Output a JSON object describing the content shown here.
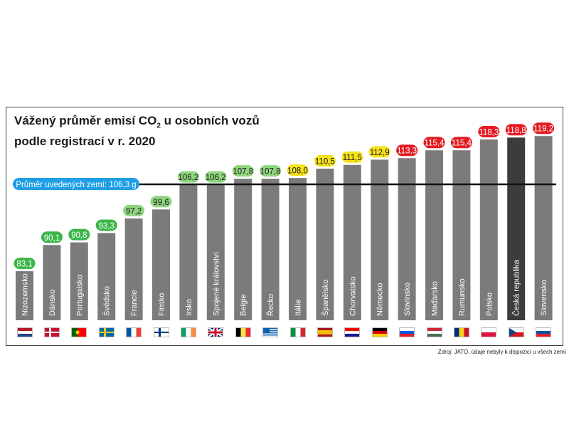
{
  "chart_data": {
    "type": "bar",
    "title_main": "Vážený průměr emisí CO",
    "title_sub": "2",
    "title_rest": " u osobních vozů",
    "title_line2": "podle registrací v r. 2020",
    "categories": [
      "Nizozemsko",
      "Dánsko",
      "Portugalsko",
      "Švédsko",
      "Francie",
      "Finsko",
      "Irsko",
      "Spojené království",
      "Belgie",
      "Řecko",
      "Itálie",
      "Španělsko",
      "Chorvatsko",
      "Německo",
      "Slovinsko",
      "Maďarsko",
      "Rumunsko",
      "Polsko",
      "Česká republika",
      "Slovensko"
    ],
    "values": [
      83.1,
      90.1,
      90.8,
      93.3,
      97.2,
      99.6,
      106.2,
      106.2,
      107.8,
      107.8,
      108.0,
      110.5,
      111.5,
      112.9,
      113.3,
      115.4,
      115.4,
      118.3,
      118.8,
      119.2
    ],
    "value_labels": [
      "83,1",
      "90,1",
      "90,8",
      "93,3",
      "97,2",
      "99,6",
      "106,2",
      "106,2",
      "107,8",
      "107,8",
      "108,0",
      "110,5",
      "111,5",
      "112,9",
      "113,3",
      "115,4",
      "115,4",
      "118,3",
      "118,8",
      "119,2"
    ],
    "label_colors": [
      "green",
      "green",
      "green",
      "green",
      "lightgreen",
      "lightgreen",
      "lightgreen",
      "lightgreen",
      "lightgreen",
      "lightgreen",
      "yellow",
      "yellow",
      "yellow",
      "yellow",
      "red",
      "red",
      "red",
      "red",
      "red",
      "red"
    ],
    "highlight": "Česká republika",
    "average_value": 106.3,
    "average_label": "Průměr uvedených zemí: 106,3 g",
    "colors": {
      "bar": "#7b7b7b",
      "bar_highlight": "#3c3c3c",
      "green": "#3cb648",
      "lightgreen": "#8fd57e",
      "yellow": "#f6e21c",
      "red": "#e31b23",
      "average_pill": "#1e9fe6"
    }
  },
  "flags": [
    {
      "icon": "netherlands-flag-icon",
      "type": "h",
      "colors": [
        "#ae1c28",
        "#ffffff",
        "#21468b"
      ]
    },
    {
      "icon": "denmark-flag-icon",
      "type": "nordic",
      "colors": [
        "#c8102e",
        "#ffffff"
      ]
    },
    {
      "icon": "portugal-flag-icon",
      "type": "pt",
      "colors": [
        "#006600",
        "#ff0000",
        "#ffcc00"
      ]
    },
    {
      "icon": "sweden-flag-icon",
      "type": "nordic",
      "colors": [
        "#006aa7",
        "#fecc00"
      ]
    },
    {
      "icon": "france-flag-icon",
      "type": "v",
      "colors": [
        "#0055a4",
        "#ffffff",
        "#ef4135"
      ]
    },
    {
      "icon": "finland-flag-icon",
      "type": "nordic",
      "colors": [
        "#ffffff",
        "#003580"
      ]
    },
    {
      "icon": "ireland-flag-icon",
      "type": "v",
      "colors": [
        "#169b62",
        "#ffffff",
        "#ff883e"
      ]
    },
    {
      "icon": "uk-flag-icon",
      "type": "uk",
      "colors": [
        "#012169",
        "#ffffff",
        "#c8102e"
      ]
    },
    {
      "icon": "belgium-flag-icon",
      "type": "v",
      "colors": [
        "#000000",
        "#fae042",
        "#ed2939"
      ]
    },
    {
      "icon": "greece-flag-icon",
      "type": "gr",
      "colors": [
        "#0d5eaf",
        "#ffffff"
      ]
    },
    {
      "icon": "italy-flag-icon",
      "type": "v",
      "colors": [
        "#009246",
        "#ffffff",
        "#ce2b37"
      ]
    },
    {
      "icon": "spain-flag-icon",
      "type": "es",
      "colors": [
        "#aa151b",
        "#f1bf00",
        "#aa151b"
      ]
    },
    {
      "icon": "croatia-flag-icon",
      "type": "h",
      "colors": [
        "#ff0000",
        "#ffffff",
        "#171796"
      ]
    },
    {
      "icon": "germany-flag-icon",
      "type": "h",
      "colors": [
        "#000000",
        "#dd0000",
        "#ffce00"
      ]
    },
    {
      "icon": "slovenia-flag-icon",
      "type": "h",
      "colors": [
        "#ffffff",
        "#005ce5",
        "#ed1c24"
      ]
    },
    {
      "icon": "hungary-flag-icon",
      "type": "h",
      "colors": [
        "#ce2939",
        "#ffffff",
        "#477050"
      ]
    },
    {
      "icon": "romania-flag-icon",
      "type": "v",
      "colors": [
        "#002b7f",
        "#fcd116",
        "#ce1126"
      ]
    },
    {
      "icon": "poland-flag-icon",
      "type": "h2",
      "colors": [
        "#ffffff",
        "#dc143c"
      ]
    },
    {
      "icon": "czech-flag-icon",
      "type": "cz",
      "colors": [
        "#ffffff",
        "#d7141a",
        "#11457e"
      ]
    },
    {
      "icon": "slovakia-flag-icon",
      "type": "h",
      "colors": [
        "#ffffff",
        "#0b4ea2",
        "#ee1c25"
      ]
    }
  ],
  "source": "Zdroj: JATO, údaje nebyly k dispozici u všech zemí"
}
